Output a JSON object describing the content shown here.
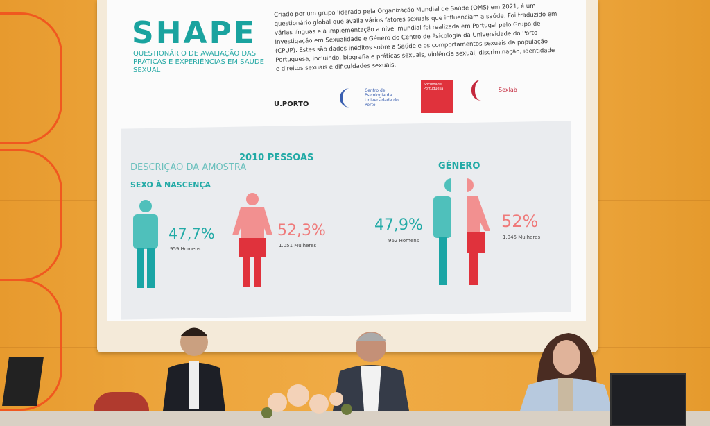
{
  "slide": {
    "title": "SHAPE",
    "subtitle": "Questionário de avaliação das práticas e experiências em saúde sexual",
    "description": "Criado por um grupo liderado pela Organização Mundial de Saúde (OMS) em 2021, é um questionário global que avalia vários fatores sexuais que influenciam a saúde. Foi traduzido em várias línguas e a implementação a nível mundial foi realizada em Portugal pelo Grupo de Investigação em Sexualidade e Género do Centro de Psicologia da Universidade do Porto (CPUP). Estes são dados inéditos sobre a Saúde e os comportamentos sexuais da população Portuguesa, incluindo: biografia e práticas sexuais, violência sexual, discriminação, identidade e direitos sexuais e dificuldades sexuais.",
    "logos": {
      "uporto": "U.PORTO",
      "cpup": "Centro de Psicologia da Universidade do Porto",
      "spsc": "Sociedade Portuguesa",
      "sexlab": "Sexlab"
    },
    "sample_label": "DESCRIÇÃO DA AMOSTRA",
    "sample_count": "2010 PESSOAS",
    "sex_heading": "SEXO À NASCENÇA",
    "gender_heading": "GÉNERO",
    "sex_men_pct": "47,7%",
    "sex_men_count": "959 Homens",
    "sex_women_pct": "52,3%",
    "sex_women_count": "1.051 Mulheres",
    "gender_men_pct": "47,9%",
    "gender_men_count": "962 Homens",
    "gender_women_pct": "52%",
    "gender_women_count": "1.045 Mulheres"
  },
  "colors": {
    "teal": "#22aaa6",
    "coral": "#ef7a7a",
    "red": "#e0323c",
    "wall": "#eca43a",
    "accent": "#f0581f"
  }
}
